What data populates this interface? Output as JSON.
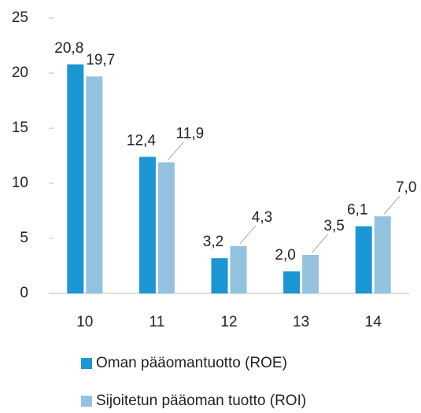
{
  "chart_data": {
    "type": "bar",
    "categories": [
      "10",
      "11",
      "12",
      "13",
      "14"
    ],
    "series": [
      {
        "name": "Oman pääomantuotto (ROE)",
        "color": "#1a96d4",
        "values": [
          20.8,
          12.4,
          3.2,
          2.0,
          6.1
        ],
        "value_labels": [
          "20,8",
          "12,4",
          "3,2",
          "2,0",
          "6,1"
        ]
      },
      {
        "name": "Sijoitetun pääoman tuotto (ROI)",
        "color": "#93c2e0",
        "values": [
          19.7,
          11.9,
          4.3,
          3.5,
          7.0
        ],
        "value_labels": [
          "19,7",
          "11,9",
          "4,3",
          "3,5",
          "7,0"
        ]
      }
    ],
    "ylim": [
      0,
      25
    ],
    "yticks": [
      0,
      5,
      10,
      15,
      20,
      25
    ],
    "grid": false,
    "legend": "bottom"
  }
}
